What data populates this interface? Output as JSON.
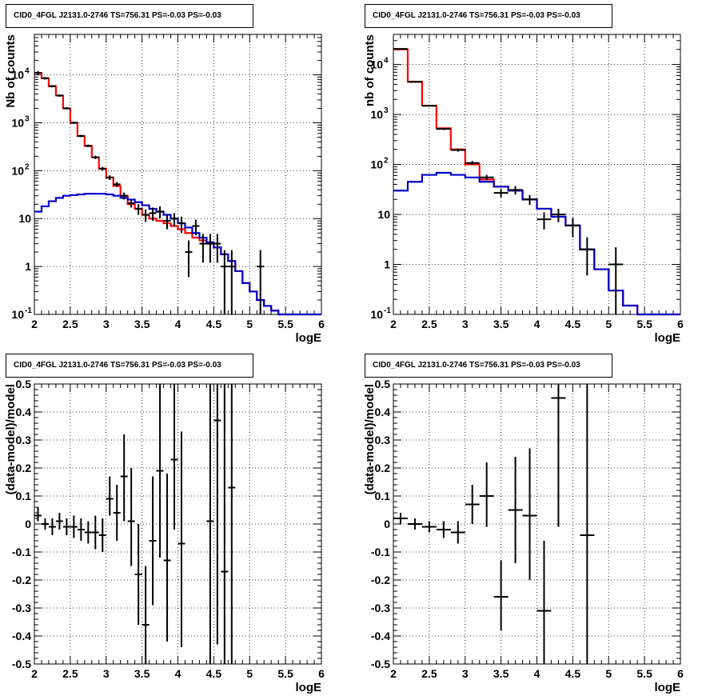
{
  "title_text": "CID0_4FGL J2131.0-2746 TS=756.31 PS=-0.03 PS=-0.03",
  "colors": {
    "data": "#000000",
    "total_model": "#ff0000",
    "source_model": "#0000cc",
    "grid": "#000000"
  },
  "chart_data": [
    {
      "type": "line",
      "title": "CID0_4FGL J2131.0-2746 TS=756.31 PS=-0.03 PS=-0.03",
      "xlabel": "logE",
      "ylabel": "Nb of counts",
      "xlim": [
        2,
        6
      ],
      "ylim": [
        0.1,
        70000
      ],
      "log_y": true,
      "grid": true,
      "x_ticks": [
        "2",
        "2.5",
        "3",
        "3.5",
        "4",
        "4.5",
        "5",
        "5.5",
        "6"
      ],
      "y_ticks": [
        "10^-1",
        "1",
        "10",
        "10^2",
        "10^3",
        "10^4"
      ],
      "bin_edges": [
        2.0,
        2.1,
        2.2,
        2.3,
        2.4,
        2.5,
        2.6,
        2.7,
        2.8,
        2.9,
        3.0,
        3.1,
        3.2,
        3.3,
        3.4,
        3.5,
        3.6,
        3.7,
        3.8,
        3.9,
        4.0,
        4.1,
        4.2,
        4.3,
        4.4,
        4.5,
        4.6,
        4.7,
        4.8,
        4.9,
        5.0,
        5.1,
        5.2,
        5.3,
        5.4,
        5.5,
        5.6,
        5.7,
        5.8,
        5.9,
        6.0
      ],
      "series": [
        {
          "name": "total model",
          "style": "step",
          "color": "#ff0000",
          "values": [
            11000,
            8500,
            5800,
            3700,
            2000,
            1000,
            530,
            330,
            190,
            110,
            72,
            48,
            30,
            20,
            16,
            12,
            10,
            9,
            8,
            7,
            6,
            5,
            4,
            3.5,
            3,
            2.5,
            1.8,
            1.3,
            0.8,
            0.45,
            0.3,
            0.2,
            0.15,
            0.12,
            0.1,
            0.1,
            0.1,
            0.1,
            0.1,
            0.1
          ]
        },
        {
          "name": "source model",
          "style": "step",
          "color": "#0000cc",
          "values": [
            14,
            18,
            23,
            27,
            30,
            31,
            32,
            33,
            33,
            33,
            32,
            30,
            27,
            25,
            22,
            19,
            16,
            14,
            12,
            10,
            8,
            6.5,
            5,
            4,
            3.2,
            2.5,
            1.8,
            1.3,
            0.8,
            0.45,
            0.3,
            0.2,
            0.15,
            0.12,
            0.1,
            0.1,
            0.1,
            0.1,
            0.1,
            0.1
          ]
        },
        {
          "name": "data",
          "style": "errorbar",
          "color": "#000000",
          "points": [
            [
              2.05,
              11000,
              10000,
              12000
            ],
            [
              2.15,
              8500,
              8000,
              9000
            ],
            [
              2.25,
              5800,
              5500,
              6100
            ],
            [
              2.35,
              3700,
              3500,
              3900
            ],
            [
              2.45,
              2000,
              1900,
              2100
            ],
            [
              2.55,
              1000,
              950,
              1050
            ],
            [
              2.65,
              530,
              500,
              560
            ],
            [
              2.75,
              330,
              310,
              350
            ],
            [
              2.85,
              190,
              175,
              205
            ],
            [
              2.95,
              110,
              100,
              120
            ],
            [
              3.05,
              72,
              64,
              80
            ],
            [
              3.15,
              52,
              46,
              58
            ],
            [
              3.25,
              30,
              25,
              35
            ],
            [
              3.35,
              21,
              17,
              25
            ],
            [
              3.45,
              16,
              12,
              20
            ],
            [
              3.55,
              12,
              8.5,
              15.5
            ],
            [
              3.65,
              13,
              9,
              17
            ],
            [
              3.75,
              14,
              10,
              18
            ],
            [
              3.85,
              9,
              6,
              12
            ],
            [
              3.95,
              10,
              7,
              13
            ],
            [
              4.05,
              8,
              5,
              11
            ],
            [
              4.15,
              2,
              0.6,
              3.5
            ],
            [
              4.25,
              7,
              4.5,
              9.5
            ],
            [
              4.35,
              3,
              1.2,
              4.8
            ],
            [
              4.45,
              3,
              1.2,
              4.8
            ],
            [
              4.55,
              3,
              1.2,
              4.8
            ],
            [
              4.65,
              1,
              0.1,
              2.2
            ],
            [
              4.75,
              1,
              0.1,
              2.2
            ],
            [
              5.15,
              1,
              0.1,
              2.2
            ]
          ]
        }
      ]
    },
    {
      "type": "line",
      "title": "CID0_4FGL J2131.0-2746 TS=756.31 PS=-0.03 PS=-0.03",
      "xlabel": "logE",
      "ylabel": "nb of counts",
      "xlim": [
        2,
        6
      ],
      "ylim": [
        0.1,
        40000
      ],
      "log_y": true,
      "grid": true,
      "x_ticks": [
        "2",
        "2.5",
        "3",
        "3.5",
        "4",
        "4.5",
        "5",
        "5.5",
        "6"
      ],
      "y_ticks": [
        "10^-1",
        "1",
        "10",
        "10^2",
        "10^3",
        "10^4"
      ],
      "bin_edges": [
        2.0,
        2.2,
        2.4,
        2.6,
        2.8,
        3.0,
        3.2,
        3.4,
        3.6,
        3.8,
        4.0,
        4.2,
        4.4,
        4.6,
        4.8,
        5.0,
        5.2,
        5.4,
        5.6,
        5.8,
        6.0
      ],
      "series": [
        {
          "name": "total model",
          "style": "step",
          "color": "#ff0000",
          "values": [
            20000,
            4500,
            1500,
            530,
            200,
            100,
            50,
            36,
            30,
            20,
            13,
            9,
            6,
            2,
            0.8,
            0.3,
            0.15,
            0.1,
            0.1,
            0.1
          ]
        },
        {
          "name": "source model",
          "style": "step",
          "color": "#0000cc",
          "values": [
            30,
            45,
            62,
            68,
            62,
            55,
            45,
            36,
            30,
            20,
            13,
            9,
            6,
            2,
            0.8,
            0.3,
            0.15,
            0.1,
            0.1,
            0.1
          ]
        },
        {
          "name": "data",
          "style": "errorbar",
          "color": "#000000",
          "points": [
            [
              2.1,
              20500,
              20000,
              21000
            ],
            [
              2.3,
              4500,
              4400,
              4600
            ],
            [
              2.5,
              1500,
              1450,
              1550
            ],
            [
              2.7,
              515,
              490,
              540
            ],
            [
              2.9,
              195,
              180,
              210
            ],
            [
              3.1,
              107,
              97,
              117
            ],
            [
              3.3,
              55,
              48,
              62
            ],
            [
              3.5,
              27,
              22,
              32
            ],
            [
              3.7,
              31,
              25,
              37
            ],
            [
              3.9,
              20,
              15.5,
              24.5
            ],
            [
              4.1,
              8,
              5,
              11
            ],
            [
              4.3,
              10,
              7,
              13
            ],
            [
              4.5,
              6,
              3.5,
              8.5
            ],
            [
              4.7,
              2,
              0.6,
              3.5
            ],
            [
              5.1,
              1,
              0.1,
              2.2
            ]
          ]
        }
      ]
    },
    {
      "type": "scatter",
      "title": "CID0_4FGL J2131.0-2746 TS=756.31 PS=-0.03 PS=-0.03",
      "xlabel": "logE",
      "ylabel": "(data-model)/model",
      "xlim": [
        2,
        6
      ],
      "ylim": [
        -0.5,
        0.5
      ],
      "grid": true,
      "x_ticks": [
        "2",
        "2.5",
        "3",
        "3.5",
        "4",
        "4.5",
        "5",
        "5.5",
        "6"
      ],
      "y_ticks": [
        "-0.5",
        "-0.4",
        "-0.3",
        "-0.2",
        "-0.1",
        "0",
        "0.1",
        "0.2",
        "0.3",
        "0.4",
        "0.5"
      ],
      "series": [
        {
          "name": "residuals",
          "style": "errorbar",
          "color": "#000000",
          "half_width": 0.05,
          "points": [
            [
              2.05,
              0.03,
              0.01,
              0.06
            ],
            [
              2.15,
              0.0,
              -0.02,
              0.02
            ],
            [
              2.25,
              -0.01,
              -0.04,
              0.02
            ],
            [
              2.35,
              0.01,
              -0.02,
              0.04
            ],
            [
              2.45,
              -0.01,
              -0.04,
              0.02
            ],
            [
              2.55,
              -0.01,
              -0.05,
              0.03
            ],
            [
              2.65,
              -0.02,
              -0.06,
              0.02
            ],
            [
              2.75,
              -0.03,
              -0.07,
              0.01
            ],
            [
              2.85,
              -0.03,
              -0.09,
              0.03
            ],
            [
              2.95,
              -0.04,
              -0.1,
              0.02
            ],
            [
              3.05,
              0.09,
              0.03,
              0.17
            ],
            [
              3.15,
              0.04,
              -0.06,
              0.14
            ],
            [
              3.25,
              0.17,
              0.01,
              0.32
            ],
            [
              3.35,
              0.01,
              -0.15,
              0.2
            ],
            [
              3.45,
              -0.18,
              -0.36,
              0.0
            ],
            [
              3.55,
              -0.36,
              -0.5,
              -0.15
            ],
            [
              3.65,
              -0.06,
              -0.29,
              0.17
            ],
            [
              3.75,
              0.19,
              -0.12,
              0.5
            ],
            [
              3.85,
              -0.13,
              -0.42,
              0.18
            ],
            [
              3.95,
              0.23,
              -0.02,
              0.5
            ],
            [
              4.05,
              -0.07,
              -0.44,
              0.33
            ],
            [
              4.45,
              0.01,
              -0.5,
              0.5
            ],
            [
              4.55,
              0.37,
              -0.43,
              0.5
            ],
            [
              4.65,
              -0.17,
              -0.5,
              0.5
            ],
            [
              4.75,
              0.13,
              -0.5,
              0.5
            ]
          ]
        }
      ]
    },
    {
      "type": "scatter",
      "title": "CID0_4FGL J2131.0-2746 TS=756.31 PS=-0.03 PS=-0.03",
      "xlabel": "logE",
      "ylabel": "(data-model)/model",
      "xlim": [
        2,
        6
      ],
      "ylim": [
        -0.5,
        0.5
      ],
      "grid": true,
      "x_ticks": [
        "2",
        "2.5",
        "3",
        "3.5",
        "4",
        "4.5",
        "5",
        "5.5",
        "6"
      ],
      "y_ticks": [
        "-0.5",
        "-0.4",
        "-0.3",
        "-0.2",
        "-0.1",
        "0",
        "0.1",
        "0.2",
        "0.3",
        "0.4",
        "0.5"
      ],
      "series": [
        {
          "name": "residuals",
          "style": "errorbar",
          "color": "#000000",
          "half_width": 0.1,
          "points": [
            [
              2.1,
              0.02,
              0.0,
              0.04
            ],
            [
              2.3,
              0.0,
              -0.02,
              0.02
            ],
            [
              2.5,
              -0.01,
              -0.03,
              0.01
            ],
            [
              2.7,
              -0.02,
              -0.05,
              0.01
            ],
            [
              2.9,
              -0.03,
              -0.07,
              0.01
            ],
            [
              3.1,
              0.07,
              0.0,
              0.14
            ],
            [
              3.3,
              0.1,
              -0.01,
              0.22
            ],
            [
              3.5,
              -0.26,
              -0.38,
              -0.13
            ],
            [
              3.7,
              0.05,
              -0.14,
              0.24
            ],
            [
              3.9,
              0.03,
              -0.2,
              0.27
            ],
            [
              4.1,
              -0.31,
              -0.5,
              -0.06
            ],
            [
              4.3,
              0.45,
              -0.01,
              0.5
            ],
            [
              4.7,
              -0.04,
              -0.5,
              0.5
            ]
          ]
        }
      ]
    }
  ]
}
